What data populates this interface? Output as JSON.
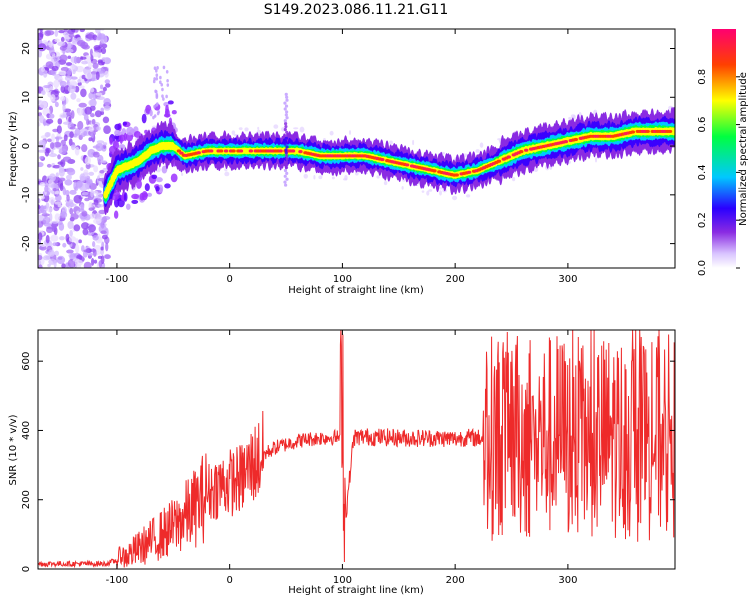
{
  "title": "S149.2023.086.11.21.G11",
  "chart_data": [
    {
      "type": "heatmap",
      "xlabel": "Height of straight line (km)",
      "ylabel": "Frequency (Hz)",
      "xlim": [
        -170,
        395
      ],
      "ylim": [
        -25,
        24
      ],
      "xticks": [
        -100,
        0,
        100,
        200,
        300
      ],
      "yticks": [
        -20,
        -10,
        0,
        10,
        20
      ],
      "colorbar_label": "Normalized spectral amplitude",
      "colorbar_ticks": [
        0.0,
        0.2,
        0.4,
        0.6,
        0.8
      ],
      "colorbar_range": [
        0,
        1
      ],
      "colormap": [
        "#f5f0ff",
        "#9b30ff",
        "#3000ff",
        "#00c8ff",
        "#00ff40",
        "#ffff00",
        "#ff4000",
        "#ff0070"
      ],
      "ridge": {
        "x": [
          -110,
          -100,
          -90,
          -80,
          -70,
          -60,
          -50,
          -40,
          -20,
          0,
          20,
          40,
          60,
          80,
          100,
          120,
          140,
          160,
          180,
          200,
          220,
          240,
          260,
          280,
          300,
          320,
          340,
          360,
          380,
          395
        ],
        "freq": [
          -10,
          -5,
          -4,
          -3,
          -1,
          0,
          0,
          -2,
          -1,
          -1,
          -1,
          -1,
          -1,
          -2,
          -2,
          -2,
          -3,
          -4,
          -5,
          -6,
          -5,
          -3,
          -1,
          0,
          1,
          2,
          2,
          3,
          3,
          3
        ]
      }
    },
    {
      "type": "line",
      "xlabel": "Height of straight line (km)",
      "ylabel": "SNR (10 * v/v)",
      "xlim": [
        -170,
        395
      ],
      "ylim": [
        0,
        690
      ],
      "xticks": [
        -100,
        0,
        100,
        200,
        300
      ],
      "yticks": [
        0,
        200,
        400,
        600
      ],
      "color": "#ee2a2a",
      "series": [
        {
          "x": [
            -170,
            -150,
            -130,
            -110,
            -100,
            -90,
            -80,
            -70,
            -60,
            -50,
            -40,
            -30,
            -20,
            -10,
            0,
            10,
            20,
            30,
            40,
            50,
            60,
            70,
            80,
            90,
            98,
            100,
            102,
            110,
            120,
            140,
            160,
            180,
            200,
            210,
            220,
            230,
            240,
            250,
            260,
            270,
            280,
            290,
            300,
            310,
            320,
            330,
            340,
            350,
            360,
            370,
            380,
            395
          ],
          "y": [
            15,
            15,
            15,
            15,
            25,
            40,
            60,
            80,
            100,
            120,
            150,
            180,
            220,
            240,
            250,
            260,
            300,
            330,
            350,
            360,
            370,
            375,
            378,
            380,
            380,
            600,
            120,
            380,
            382,
            380,
            378,
            378,
            376,
            380,
            378,
            380,
            385,
            390,
            380,
            370,
            380,
            390,
            380,
            370,
            380,
            380,
            385,
            380,
            375,
            380,
            380,
            380
          ]
        }
      ]
    }
  ]
}
